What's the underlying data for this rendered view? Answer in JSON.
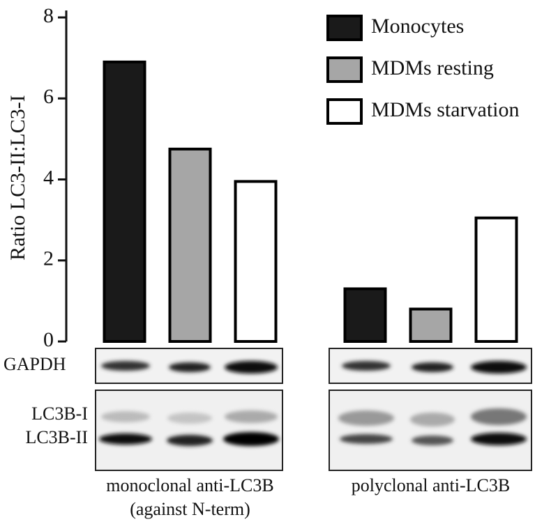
{
  "chart_data": {
    "type": "bar",
    "y_label": "Ratio LC3-II:LC3-I",
    "categories": [
      "monoclonal anti-LC3B (against N-term)",
      "polyclonal anti-LC3B"
    ],
    "series": [
      {
        "name": "Monocytes",
        "color": "#1a1a1a",
        "values": [
          6.9,
          1.3
        ]
      },
      {
        "name": "MDMs resting",
        "color": "#a6a6a6",
        "values": [
          4.75,
          0.8
        ]
      },
      {
        "name": "MDMs starvation",
        "color": "#ffffff",
        "values": [
          3.95,
          3.05
        ]
      }
    ],
    "edgecolor": "#000000",
    "ylim": [
      0,
      8
    ],
    "yticks": [
      0,
      2,
      4,
      6,
      8
    ],
    "grid": false,
    "legend": "upper right",
    "blot_labels": [
      "GAPDH",
      "LC3B-I",
      "LC3B-II"
    ]
  }
}
